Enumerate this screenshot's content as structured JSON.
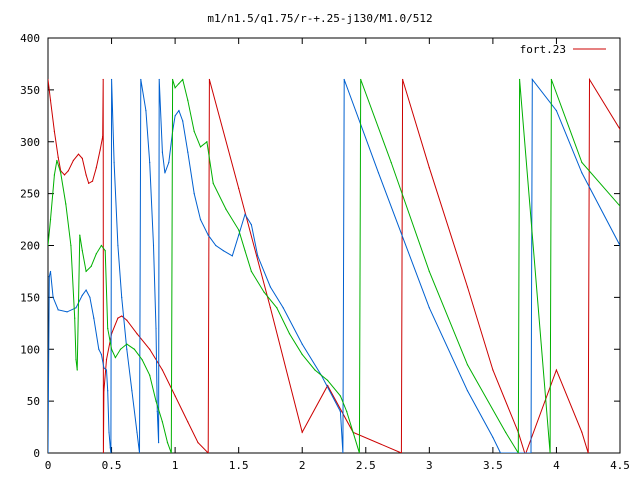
{
  "chart_data": {
    "type": "line",
    "title": "m1/n1.5/q1.75/r-+.25-j130/M1.0/512",
    "xlabel": "",
    "ylabel": "",
    "xlim": [
      0,
      4.5
    ],
    "ylim": [
      0,
      400
    ],
    "xticks": [
      "0",
      "0.5",
      "1",
      "1.5",
      "2",
      "2.5",
      "3",
      "3.5",
      "4",
      "4.5"
    ],
    "xtick_values": [
      0,
      0.5,
      1,
      1.5,
      2,
      2.5,
      3,
      3.5,
      4,
      4.5
    ],
    "yticks": [
      "0",
      "50",
      "100",
      "150",
      "200",
      "250",
      "300",
      "350",
      "400"
    ],
    "ytick_values": [
      0,
      50,
      100,
      150,
      200,
      250,
      300,
      350,
      400
    ],
    "grid": false,
    "legend_position": "top-right",
    "legend": [
      {
        "label": "fort.23",
        "color": "#cc0000"
      }
    ],
    "series": [
      {
        "name": "fort.23",
        "color": "#cc0000",
        "points": [
          [
            0.0,
            360
          ],
          [
            0.02,
            340
          ],
          [
            0.05,
            310
          ],
          [
            0.08,
            285
          ],
          [
            0.1,
            272
          ],
          [
            0.13,
            268
          ],
          [
            0.16,
            272
          ],
          [
            0.2,
            282
          ],
          [
            0.24,
            288
          ],
          [
            0.27,
            284
          ],
          [
            0.3,
            268
          ],
          [
            0.32,
            260
          ],
          [
            0.35,
            262
          ],
          [
            0.38,
            275
          ],
          [
            0.41,
            292
          ],
          [
            0.43,
            305
          ],
          [
            0.434,
            360
          ],
          [
            0.436,
            0
          ],
          [
            0.44,
            60
          ],
          [
            0.46,
            90
          ],
          [
            0.5,
            115
          ],
          [
            0.55,
            130
          ],
          [
            0.58,
            132
          ],
          [
            0.62,
            128
          ],
          [
            0.7,
            115
          ],
          [
            0.8,
            100
          ],
          [
            0.9,
            80
          ],
          [
            1.0,
            55
          ],
          [
            1.1,
            30
          ],
          [
            1.18,
            10
          ],
          [
            1.26,
            0
          ],
          [
            1.27,
            360
          ],
          [
            1.5,
            255
          ],
          [
            1.75,
            140
          ],
          [
            2.0,
            20
          ],
          [
            2.2,
            65
          ],
          [
            2.4,
            20
          ],
          [
            2.78,
            0
          ],
          [
            2.79,
            360
          ],
          [
            3.0,
            275
          ],
          [
            3.3,
            160
          ],
          [
            3.5,
            80
          ],
          [
            3.7,
            20
          ],
          [
            3.75,
            0
          ],
          [
            3.76,
            0
          ],
          [
            4.0,
            80
          ],
          [
            4.2,
            20
          ],
          [
            4.25,
            0
          ],
          [
            4.26,
            360
          ],
          [
            4.5,
            312
          ]
        ]
      },
      {
        "name": "",
        "color": "#0060d0",
        "points": [
          [
            0.0,
            0
          ],
          [
            0.01,
            170
          ],
          [
            0.02,
            175
          ],
          [
            0.04,
            150
          ],
          [
            0.08,
            138
          ],
          [
            0.15,
            136
          ],
          [
            0.22,
            140
          ],
          [
            0.27,
            152
          ],
          [
            0.3,
            157
          ],
          [
            0.33,
            150
          ],
          [
            0.36,
            130
          ],
          [
            0.4,
            100
          ],
          [
            0.42,
            95
          ],
          [
            0.44,
            82
          ],
          [
            0.46,
            80
          ],
          [
            0.47,
            60
          ],
          [
            0.48,
            20
          ],
          [
            0.49,
            5
          ],
          [
            0.495,
            0
          ],
          [
            0.5,
            360
          ],
          [
            0.52,
            280
          ],
          [
            0.55,
            200
          ],
          [
            0.58,
            150
          ],
          [
            0.62,
            100
          ],
          [
            0.66,
            60
          ],
          [
            0.7,
            20
          ],
          [
            0.72,
            0
          ],
          [
            0.73,
            360
          ],
          [
            0.77,
            330
          ],
          [
            0.8,
            280
          ],
          [
            0.83,
            200
          ],
          [
            0.85,
            120
          ],
          [
            0.86,
            40
          ],
          [
            0.87,
            10
          ],
          [
            0.875,
            360
          ],
          [
            0.9,
            290
          ],
          [
            0.92,
            270
          ],
          [
            0.95,
            280
          ],
          [
            0.98,
            310
          ],
          [
            1.0,
            325
          ],
          [
            1.03,
            330
          ],
          [
            1.06,
            320
          ],
          [
            1.1,
            290
          ],
          [
            1.15,
            250
          ],
          [
            1.2,
            225
          ],
          [
            1.26,
            210
          ],
          [
            1.32,
            200
          ],
          [
            1.38,
            195
          ],
          [
            1.45,
            190
          ],
          [
            1.5,
            210
          ],
          [
            1.55,
            230
          ],
          [
            1.6,
            220
          ],
          [
            1.65,
            190
          ],
          [
            1.75,
            160
          ],
          [
            1.85,
            140
          ],
          [
            2.0,
            105
          ],
          [
            2.15,
            75
          ],
          [
            2.3,
            40
          ],
          [
            2.32,
            0
          ],
          [
            2.33,
            360
          ],
          [
            2.6,
            270
          ],
          [
            3.0,
            140
          ],
          [
            3.3,
            60
          ],
          [
            3.5,
            15
          ],
          [
            3.56,
            0
          ],
          [
            3.8,
            0
          ],
          [
            3.81,
            360
          ],
          [
            4.0,
            330
          ],
          [
            4.2,
            270
          ],
          [
            4.5,
            200
          ]
        ]
      },
      {
        "name": "",
        "color": "#00b000",
        "points": [
          [
            0.0,
            200
          ],
          [
            0.02,
            225
          ],
          [
            0.05,
            268
          ],
          [
            0.07,
            282
          ],
          [
            0.1,
            270
          ],
          [
            0.14,
            240
          ],
          [
            0.18,
            200
          ],
          [
            0.21,
            130
          ],
          [
            0.22,
            90
          ],
          [
            0.23,
            80
          ],
          [
            0.25,
            210
          ],
          [
            0.27,
            195
          ],
          [
            0.3,
            175
          ],
          [
            0.34,
            180
          ],
          [
            0.38,
            192
          ],
          [
            0.42,
            200
          ],
          [
            0.45,
            195
          ],
          [
            0.47,
            120
          ],
          [
            0.5,
            100
          ],
          [
            0.53,
            92
          ],
          [
            0.57,
            100
          ],
          [
            0.62,
            105
          ],
          [
            0.68,
            100
          ],
          [
            0.74,
            90
          ],
          [
            0.8,
            75
          ],
          [
            0.85,
            50
          ],
          [
            0.9,
            30
          ],
          [
            0.94,
            10
          ],
          [
            0.97,
            0
          ],
          [
            0.98,
            360
          ],
          [
            1.0,
            352
          ],
          [
            1.03,
            356
          ],
          [
            1.06,
            360
          ],
          [
            1.1,
            340
          ],
          [
            1.15,
            310
          ],
          [
            1.2,
            295
          ],
          [
            1.25,
            300
          ],
          [
            1.3,
            260
          ],
          [
            1.4,
            235
          ],
          [
            1.5,
            215
          ],
          [
            1.55,
            195
          ],
          [
            1.6,
            175
          ],
          [
            1.7,
            155
          ],
          [
            1.8,
            140
          ],
          [
            1.9,
            115
          ],
          [
            2.0,
            95
          ],
          [
            2.1,
            80
          ],
          [
            2.2,
            70
          ],
          [
            2.3,
            55
          ],
          [
            2.35,
            40
          ],
          [
            2.4,
            20
          ],
          [
            2.45,
            0
          ],
          [
            2.46,
            360
          ],
          [
            2.7,
            280
          ],
          [
            3.0,
            175
          ],
          [
            3.3,
            85
          ],
          [
            3.6,
            20
          ],
          [
            3.7,
            0
          ],
          [
            3.71,
            360
          ],
          [
            3.95,
            0
          ],
          [
            3.96,
            360
          ],
          [
            4.2,
            280
          ],
          [
            4.5,
            238
          ]
        ]
      }
    ]
  }
}
